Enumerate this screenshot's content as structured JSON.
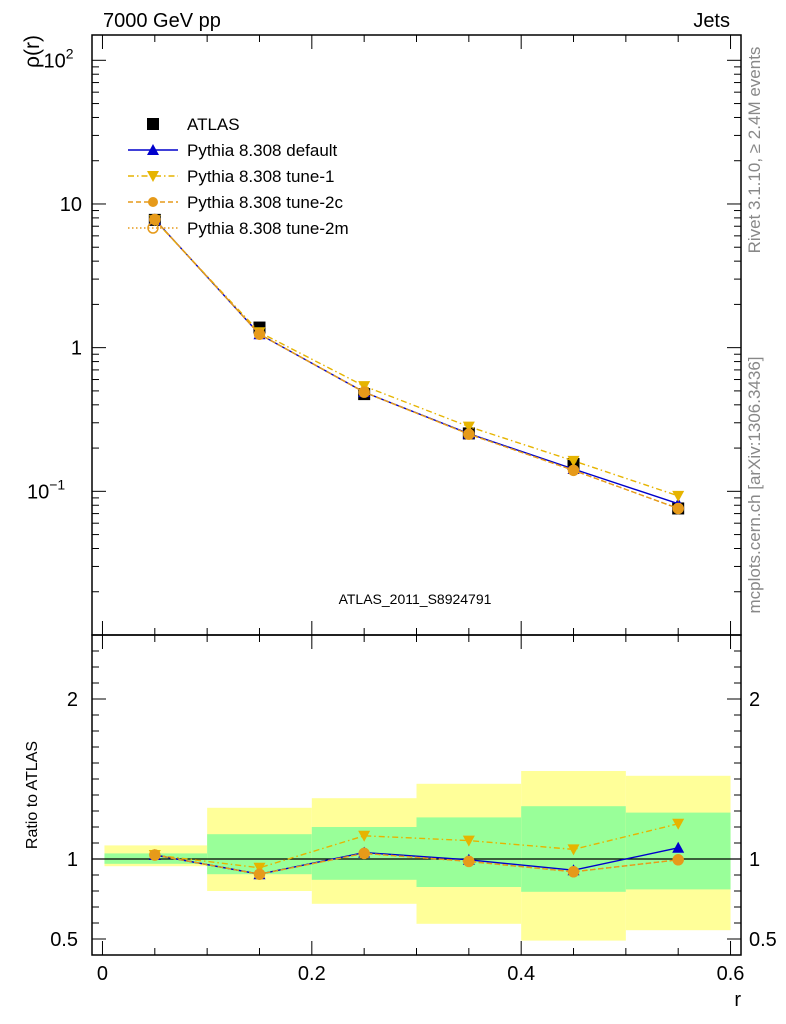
{
  "header": {
    "left_title": "7000 GeV pp",
    "right_title": "Jets"
  },
  "side_labels": {
    "rivet": "Rivet 3.1.10, ≥ 2.4M events",
    "mcplots": "mcplots.cern.ch [arXiv:1306.3436]"
  },
  "watermark": "ATLAS_2011_S8924791",
  "ratio_ylabel": "Ratio to ATLAS",
  "main_ylabel": "ρ(r)",
  "xlabel": "r",
  "legend": [
    {
      "label": "ATLAS",
      "color": "#000000",
      "marker": "square",
      "line": "none"
    },
    {
      "label": "Pythia 8.308 default",
      "color": "#0000cc",
      "marker": "triangle-up",
      "line": "solid"
    },
    {
      "label": "Pythia 8.308 tune-1",
      "color": "#e6b400",
      "marker": "triangle-down",
      "line": "dashdot"
    },
    {
      "label": "Pythia 8.308 tune-2c",
      "color": "#e69a1a",
      "marker": "circle",
      "line": "dashed"
    },
    {
      "label": "Pythia 8.308 tune-2m",
      "color": "#e69a1a",
      "marker": "circle-open",
      "line": "dotted"
    }
  ],
  "chart_data": [
    {
      "type": "scatter",
      "panel": "main",
      "ylabel": "ρ(r)",
      "yscale": "log",
      "xlim": [
        -0.01,
        0.61
      ],
      "ylim": [
        0.01,
        150
      ],
      "yticks": [
        {
          "v": 0.1,
          "base": "10",
          "exp": "−1"
        },
        {
          "v": 1,
          "base": "1",
          "exp": ""
        },
        {
          "v": 10,
          "base": "10",
          "exp": ""
        },
        {
          "v": 100,
          "base": "10",
          "exp": "2"
        }
      ],
      "x": [
        0.05,
        0.15,
        0.25,
        0.35,
        0.45,
        0.55
      ],
      "series": [
        {
          "name": "ATLAS",
          "values": [
            7.75,
            1.38,
            0.475,
            0.253,
            0.155,
            0.076
          ]
        },
        {
          "name": "Pythia 8.308 default",
          "values": [
            7.8,
            1.24,
            0.49,
            0.252,
            0.143,
            0.082
          ]
        },
        {
          "name": "Pythia 8.308 tune-1",
          "values": [
            7.7,
            1.28,
            0.54,
            0.282,
            0.163,
            0.093
          ]
        },
        {
          "name": "Pythia 8.308 tune-2c",
          "values": [
            7.8,
            1.24,
            0.49,
            0.25,
            0.14,
            0.076
          ]
        },
        {
          "name": "Pythia 8.308 tune-2m",
          "values": [
            7.8,
            1.24,
            0.49,
            0.25,
            0.14,
            0.076
          ]
        }
      ]
    },
    {
      "type": "scatter",
      "panel": "ratio",
      "ylabel": "Ratio to ATLAS",
      "xlabel": "r",
      "xlim": [
        -0.01,
        0.61
      ],
      "ylim": [
        0.4,
        2.4
      ],
      "yticks": [
        0.5,
        1,
        2
      ],
      "xticks": [
        0,
        0.2,
        0.4,
        0.6
      ],
      "bins": [
        [
          0.0,
          0.1
        ],
        [
          0.1,
          0.2
        ],
        [
          0.2,
          0.3
        ],
        [
          0.3,
          0.4
        ],
        [
          0.4,
          0.5
        ],
        [
          0.5,
          0.6
        ]
      ],
      "band_outer": [
        [
          0.955,
          1.085
        ],
        [
          0.8,
          1.32
        ],
        [
          0.72,
          1.38
        ],
        [
          0.595,
          1.47
        ],
        [
          0.49,
          1.55
        ],
        [
          0.555,
          1.52
        ]
      ],
      "band_inner": [
        [
          0.97,
          1.035
        ],
        [
          0.905,
          1.155
        ],
        [
          0.87,
          1.2
        ],
        [
          0.825,
          1.26
        ],
        [
          0.795,
          1.33
        ],
        [
          0.81,
          1.29
        ]
      ],
      "x": [
        0.05,
        0.15,
        0.25,
        0.35,
        0.45,
        0.55
      ],
      "series": [
        {
          "name": "Pythia 8.308 default",
          "values": [
            1.025,
            0.905,
            1.04,
            0.995,
            0.93,
            1.07
          ]
        },
        {
          "name": "Pythia 8.308 tune-1",
          "values": [
            1.025,
            0.945,
            1.145,
            1.115,
            1.06,
            1.22
          ]
        },
        {
          "name": "Pythia 8.308 tune-2c",
          "values": [
            1.025,
            0.905,
            1.035,
            0.985,
            0.92,
            0.995
          ]
        },
        {
          "name": "Pythia 8.308 tune-2m",
          "values": [
            1.025,
            0.905,
            1.035,
            0.985,
            0.92,
            0.995
          ]
        }
      ]
    }
  ]
}
